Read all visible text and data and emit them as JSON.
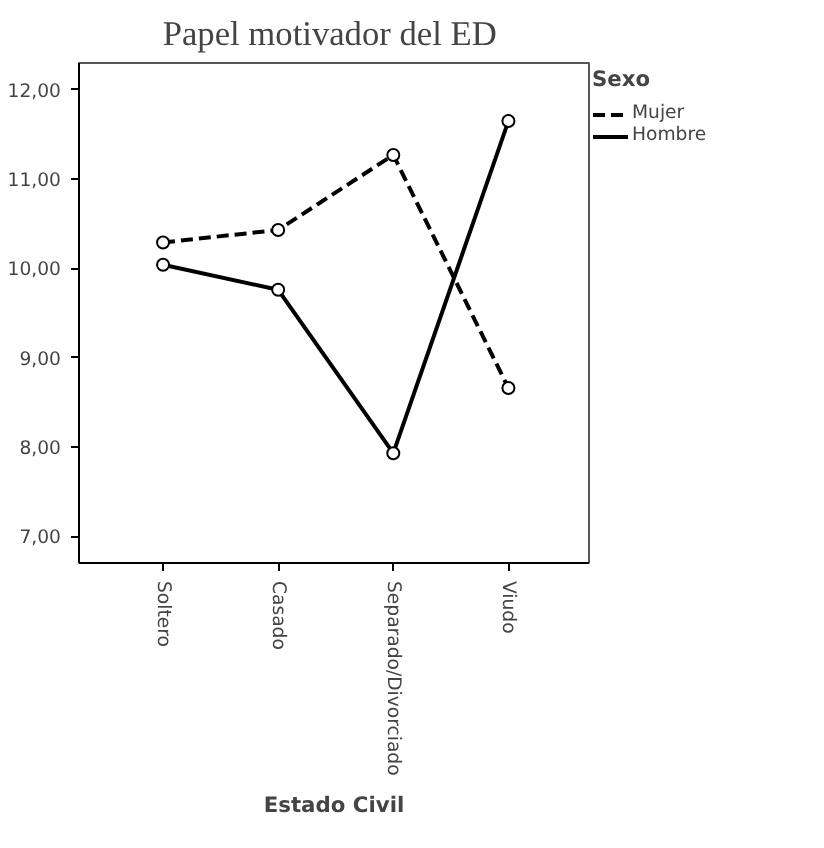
{
  "chart_data": {
    "type": "line",
    "title": "Papel motivador del  ED",
    "xlabel": "Estado Civil",
    "legend_title": "Sexo",
    "legend": "top right",
    "marker": "circle",
    "grid": false,
    "categories": [
      "Soltero",
      "Casado",
      "Separado/Divorciado",
      "Viudo"
    ],
    "ylim": [
      6.7,
      12.3
    ],
    "yticks": [
      {
        "value": 7,
        "label": "7,00"
      },
      {
        "value": 8,
        "label": "8,00"
      },
      {
        "value": 9,
        "label": "9,00"
      },
      {
        "value": 10,
        "label": "10,00"
      },
      {
        "value": 11,
        "label": "11,00"
      },
      {
        "value": 12,
        "label": "12,00"
      }
    ],
    "series": [
      {
        "name": "Mujer",
        "color": "#000000",
        "line_style": "dashed",
        "values": [
          10.29,
          10.43,
          11.27,
          8.66
        ]
      },
      {
        "name": "Hombre",
        "color": "#000000",
        "line_style": "solid",
        "values": [
          10.04,
          9.76,
          7.93,
          11.65
        ]
      }
    ]
  }
}
